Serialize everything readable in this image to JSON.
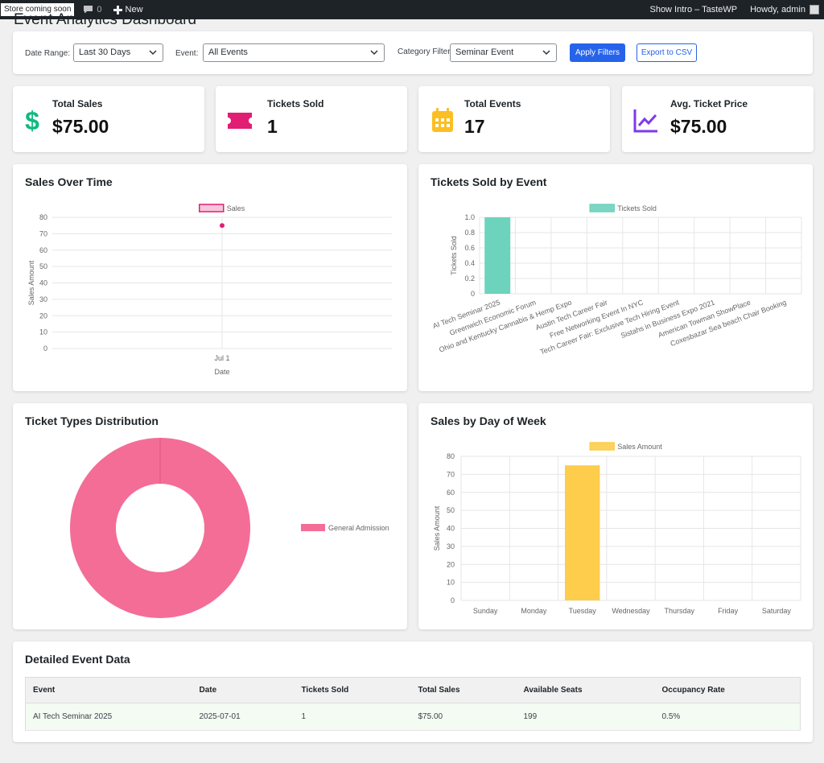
{
  "adminbar": {
    "store_badge": "Store coming soon",
    "comments_count": "0",
    "new_label": "New",
    "show_intro": "Show Intro – TasteWP",
    "howdy": "Howdy, admin"
  },
  "page": {
    "title": "Event Analytics Dashboard"
  },
  "filters": {
    "date_range_label": "Date Range:",
    "date_range_value": "Last 30 Days",
    "event_label": "Event:",
    "event_value": "All Events",
    "category_label": "Category Filter",
    "category_value": "Seminar Event",
    "apply_label": "Apply Filters",
    "export_label": "Export to CSV"
  },
  "stats": [
    {
      "label": "Total Sales",
      "value": "$75.00",
      "icon": "dollar-icon",
      "color": "#10b981"
    },
    {
      "label": "Tickets Sold",
      "value": "1",
      "icon": "ticket-icon",
      "color": "#e11d74"
    },
    {
      "label": "Total Events",
      "value": "17",
      "icon": "calendar-icon",
      "color": "#fbbf24"
    },
    {
      "label": "Avg. Ticket Price",
      "value": "$75.00",
      "icon": "trend-chart-icon",
      "color": "#7c3aed"
    }
  ],
  "charts": {
    "sales_over_time_title": "Sales Over Time",
    "tickets_by_event_title": "Tickets Sold by Event",
    "ticket_types_title": "Ticket Types Distribution",
    "sales_by_day_title": "Sales by Day of Week"
  },
  "chart_data": [
    {
      "type": "line",
      "title": "Sales Over Time",
      "xlabel": "Date",
      "ylabel": "Sales Amount",
      "legend": "top",
      "x": [
        "Jul 1"
      ],
      "series": [
        {
          "name": "Sales",
          "values": [
            75
          ]
        }
      ],
      "ylim": [
        0,
        80
      ],
      "yticks": [
        0,
        10,
        20,
        30,
        40,
        50,
        60,
        70,
        80
      ],
      "grid": true,
      "color": "#e11d74"
    },
    {
      "type": "bar",
      "title": "Tickets Sold by Event",
      "xlabel": "",
      "ylabel": "Tickets Sold",
      "legend": "top",
      "categories": [
        "AI Tech Seminar 2025",
        "Greenwich Economic Forum",
        "Ohio and Kentucky Cannabis & Hemp Expo",
        "Austin Tech Career Fair",
        "Free Networking Event In NYC",
        "Tech Career Fair: Exclusive Tech Hiring Event",
        "Sistahs in Business Expo 2021",
        "American Towman ShowPlace",
        "Coxesbazar Sea beach Chair Booking"
      ],
      "series": [
        {
          "name": "Tickets Sold",
          "values": [
            1,
            0,
            0,
            0,
            0,
            0,
            0,
            0,
            0
          ]
        }
      ],
      "ylim": [
        0,
        1
      ],
      "yticks": [
        "0",
        "0.2",
        "0.4",
        "0.6",
        "0.8",
        "1.0"
      ],
      "grid": true,
      "color": "#6dd3bd"
    },
    {
      "type": "pie",
      "title": "Ticket Types Distribution",
      "legend": "right",
      "categories": [
        "General Admission"
      ],
      "values": [
        1
      ],
      "donut": true,
      "color": "#f46d97"
    },
    {
      "type": "bar",
      "title": "Sales by Day of Week",
      "xlabel": "",
      "ylabel": "Sales Amount",
      "legend": "top",
      "categories": [
        "Sunday",
        "Monday",
        "Tuesday",
        "Wednesday",
        "Thursday",
        "Friday",
        "Saturday"
      ],
      "series": [
        {
          "name": "Sales Amount",
          "values": [
            0,
            0,
            75,
            0,
            0,
            0,
            0
          ]
        }
      ],
      "ylim": [
        0,
        80
      ],
      "yticks": [
        0,
        10,
        20,
        30,
        40,
        50,
        60,
        70,
        80
      ],
      "grid": true,
      "color": "#fdcd4b"
    }
  ],
  "table": {
    "title": "Detailed Event Data",
    "headers": [
      "Event",
      "Date",
      "Tickets Sold",
      "Total Sales",
      "Available Seats",
      "Occupancy Rate"
    ],
    "rows": [
      [
        "AI Tech Seminar 2025",
        "2025-07-01",
        "1",
        "$75.00",
        "199",
        "0.5%"
      ]
    ]
  }
}
